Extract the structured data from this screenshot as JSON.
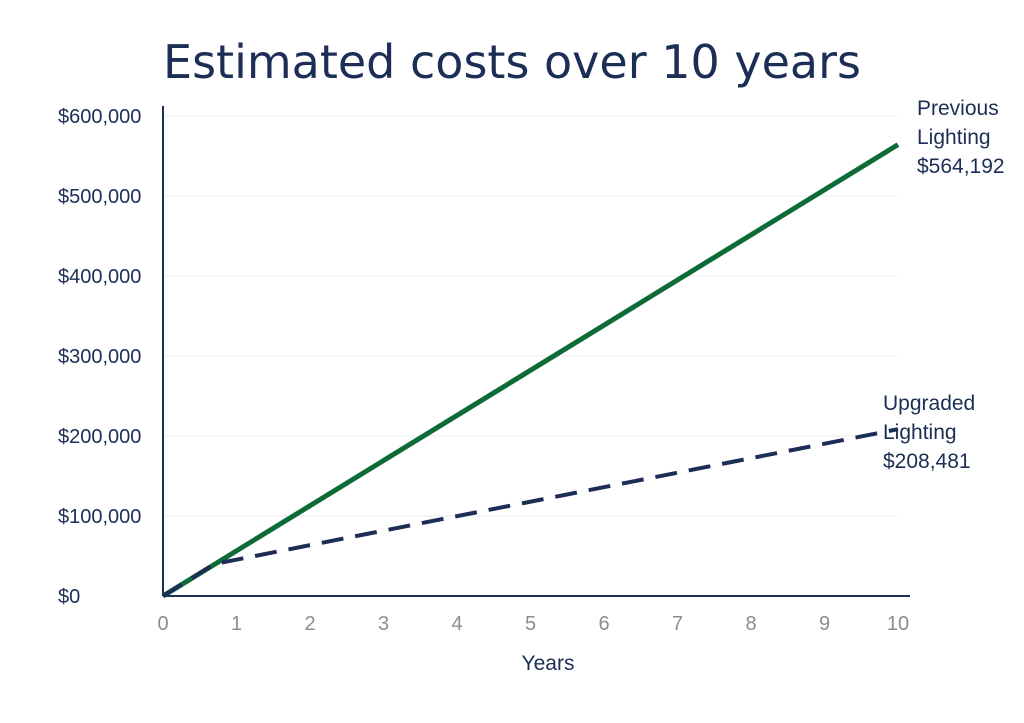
{
  "chart_data": {
    "type": "line",
    "title": "Estimated costs over 10 years",
    "xlabel": "Years",
    "ylabel": "",
    "xlim": [
      0,
      10
    ],
    "ylim": [
      0,
      600000
    ],
    "x_ticks": [
      "0",
      "1",
      "2",
      "3",
      "4",
      "5",
      "6",
      "7",
      "8",
      "9",
      "10"
    ],
    "y_ticks": [
      "$0",
      "$100,000",
      "$200,000",
      "$300,000",
      "$400,000",
      "$500,000",
      "$600,000"
    ],
    "grid": true,
    "series": [
      {
        "name": "Previous Lighting",
        "style": "solid",
        "color": "#0d6b38",
        "x": [
          0,
          10
        ],
        "y": [
          0,
          564192
        ],
        "label_lines": [
          "Previous",
          "Lighting",
          "$564,192"
        ]
      },
      {
        "name": "Upgraded Lighting",
        "style": "dashed",
        "color": "#1c2e55",
        "x": [
          0,
          0.7,
          10
        ],
        "y": [
          0,
          40000,
          208481
        ],
        "label_lines": [
          "Upgraded",
          "Lighting",
          "$208,481"
        ]
      }
    ]
  }
}
